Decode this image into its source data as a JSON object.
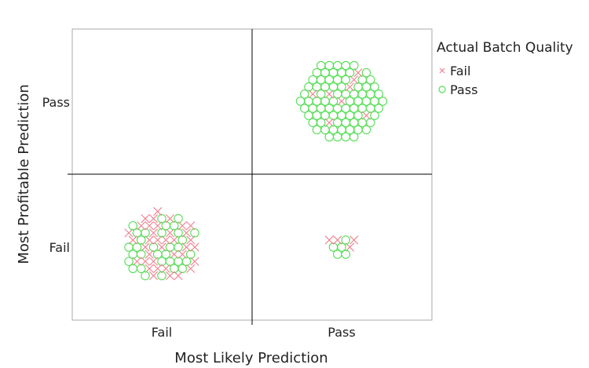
{
  "chart_data": {
    "type": "scatter",
    "title": "",
    "xlabel": "Most Likely Prediction",
    "ylabel": "Most Profitable Prediction",
    "x_categories": [
      "Fail",
      "Pass"
    ],
    "y_categories": [
      "Fail",
      "Pass"
    ],
    "jittered": true,
    "grid": false,
    "legend": {
      "title": "Actual Batch Quality",
      "position": "right-top",
      "entries": [
        {
          "label": "Fail",
          "marker": "x",
          "color": "#f08090"
        },
        {
          "label": "Pass",
          "marker": "circle",
          "color": "#55dd55"
        }
      ]
    },
    "cells": [
      {
        "x": "Fail",
        "y": "Fail",
        "fail_count": 37,
        "pass_count": 33
      },
      {
        "x": "Pass",
        "y": "Pass",
        "fail_count": 8,
        "pass_count": 80
      },
      {
        "x": "Pass",
        "y": "Fail",
        "fail_count": 4,
        "pass_count": 5
      },
      {
        "x": "Fail",
        "y": "Pass",
        "fail_count": 0,
        "pass_count": 0
      }
    ]
  },
  "colors": {
    "fail": "#f08090",
    "pass": "#55dd55",
    "frame": "#aaaaaa",
    "divider": "#000000"
  }
}
